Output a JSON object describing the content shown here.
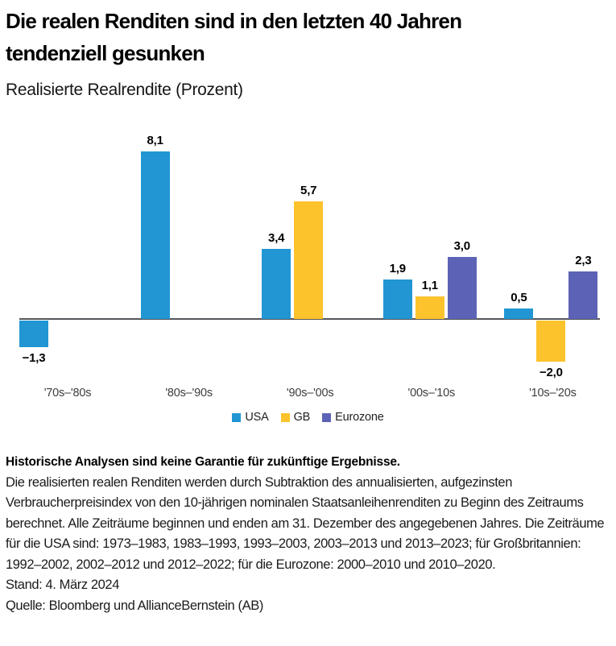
{
  "header": {
    "title": "Die realen Renditen sind in den letzten 40 Jahren tendenziell gesunken",
    "subtitle": "Realisierte Realrendite (Prozent)"
  },
  "chart_data": {
    "type": "bar",
    "title": "Realisierte Realrendite (Prozent)",
    "categories": [
      "'70s–'80s",
      "'80s–'90s",
      "'90s–'00s",
      "'00s–'10s",
      "'10s–'20s"
    ],
    "series": [
      {
        "name": "USA",
        "color": "#2196d3",
        "values": [
          -1.3,
          8.1,
          3.4,
          1.9,
          0.5
        ],
        "labels": [
          "−1,3",
          "8,1",
          "3,4",
          "1,9",
          "0,5"
        ]
      },
      {
        "name": "GB",
        "color": "#fdc32d",
        "values": [
          null,
          null,
          5.7,
          1.1,
          -2.0
        ],
        "labels": [
          null,
          null,
          "5,7",
          "1,1",
          "−2,0"
        ]
      },
      {
        "name": "Eurozone",
        "color": "#5c63b6",
        "values": [
          null,
          null,
          null,
          3.0,
          2.3
        ],
        "labels": [
          null,
          null,
          null,
          "3,0",
          "2,3"
        ]
      }
    ],
    "ylim": [
      -2.5,
      8.5
    ],
    "grid": false,
    "legend_position": "bottom",
    "axis_color": "#55565a"
  },
  "footer": {
    "disclaimer": "Historische Analysen sind keine Garantie für zukünftige Ergebnisse.",
    "methodology": "Die realisierten realen Renditen werden durch Subtraktion des annualisierten, aufgezinsten Verbraucherpreisindex von den 10-jährigen nominalen Staatsanleihenrenditen zu Beginn des Zeitraums berechnet. Alle Zeiträume beginnen und enden am 31. Dezember des angegebenen Jahres. Die Zeiträume für die USA sind: 1973–1983, 1983–1993, 1993–2003, 2003–2013 und 2013–2023; für Großbritannien: 1992–2002, 2002–2012 und 2012–2022; für die Eurozone: 2000–2010 und 2010–2020.",
    "as_of": "Stand: 4. März 2024",
    "source": "Quelle: Bloomberg und AllianceBernstein (AB)"
  }
}
